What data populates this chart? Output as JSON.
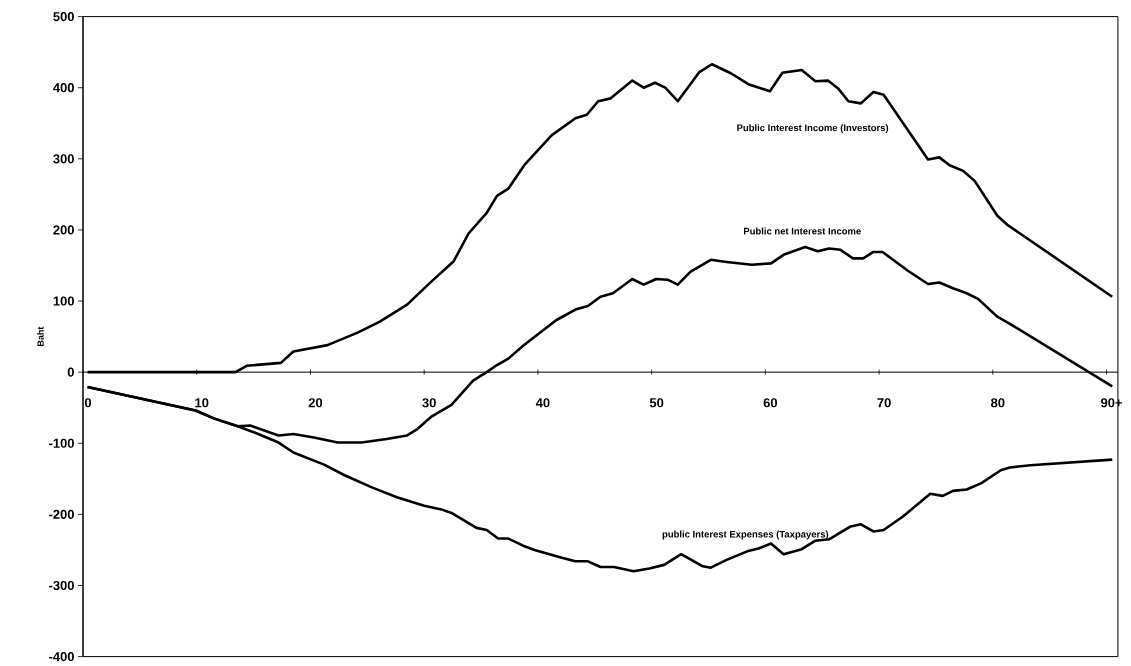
{
  "chart_data": {
    "type": "line",
    "ylabel": "Baht",
    "xlim": [
      0,
      91
    ],
    "ylim": [
      -400,
      500
    ],
    "xticks": [
      0,
      10,
      20,
      30,
      40,
      50,
      60,
      70,
      80,
      {
        "value": 90,
        "label": "90+"
      }
    ],
    "yticks": [
      -400,
      -300,
      -200,
      -100,
      0,
      100,
      200,
      300,
      400,
      500
    ],
    "series": [
      {
        "name": "Public Interest Income (Investors)",
        "color": "#000000",
        "x": [
          0.4,
          13.4,
          14.4,
          17.4,
          18.5,
          21.5,
          24.2,
          26.1,
          28.5,
          30.6,
          32.6,
          33.9,
          35.5,
          36.4,
          37.4,
          38.8,
          41.2,
          43.3,
          44.3,
          45.3,
          46.4,
          48.3,
          49.3,
          50.3,
          51.2,
          52.3,
          54.2,
          55.3,
          57,
          58.5,
          60.4,
          61.5,
          63.2,
          64.4,
          65.5,
          66.4,
          67.3,
          68.4,
          69.5,
          70.4,
          74.3,
          75.3,
          76.2,
          77.4,
          78.4,
          79.3,
          80.4,
          81.3,
          90.5
        ],
        "values": [
          0,
          0,
          9,
          13,
          29,
          38,
          56,
          71,
          95,
          127,
          156,
          195,
          224,
          248,
          258,
          291,
          333,
          357,
          362,
          381,
          385,
          410,
          400,
          407,
          400,
          381,
          422,
          433,
          420,
          405,
          395,
          421,
          425,
          409,
          410,
          399,
          381,
          378,
          394,
          390,
          299,
          302,
          291,
          283,
          269,
          247,
          220,
          207,
          106
        ]
      },
      {
        "name": "Public net Interest Income",
        "color": "#000000",
        "x": [
          0.4,
          9.9,
          11.5,
          13.6,
          14.7,
          17.2,
          18.5,
          20.3,
          22.4,
          24.5,
          26.7,
          28.5,
          29.4,
          30.6,
          32.4,
          34.3,
          35.5,
          36.4,
          37.4,
          38.7,
          41.6,
          43.3,
          44.4,
          45.5,
          46.6,
          48.3,
          49.3,
          50.4,
          51.4,
          52.3,
          53.4,
          55.2,
          56.6,
          58.8,
          60.5,
          61.6,
          63.5,
          64.6,
          65.6,
          66.6,
          67.7,
          68.6,
          69.5,
          70.3,
          72.5,
          74.3,
          75.3,
          76.5,
          77.7,
          78.7,
          80.4,
          81.5,
          90.5
        ],
        "values": [
          -21,
          -54,
          -65,
          -76,
          -75,
          -89,
          -87,
          -92,
          -99,
          -99,
          -94,
          -89,
          -80,
          -63,
          -46,
          -12,
          0,
          10,
          19,
          37,
          73,
          88,
          93,
          106,
          111,
          131,
          123,
          131,
          130,
          123,
          141,
          158,
          155,
          151,
          153,
          165,
          176,
          170,
          174,
          172,
          160,
          160,
          169,
          169,
          143,
          124,
          126,
          118,
          111,
          103,
          78,
          68,
          -20
        ]
      },
      {
        "name": "public Interest Expenses (Taxpayers)",
        "color": "#000000",
        "x": [
          0.4,
          9.9,
          11.5,
          13.6,
          15.4,
          17.2,
          18.5,
          21.2,
          23,
          25.4,
          27.6,
          30,
          31.5,
          32.4,
          34.6,
          35.5,
          36.5,
          37.4,
          38.7,
          39.7,
          42.1,
          43.3,
          44.4,
          45.5,
          46.7,
          48.4,
          49.8,
          51.1,
          52.6,
          54.5,
          55.2,
          56.6,
          58.4,
          59.4,
          60.5,
          61.6,
          63.2,
          64.4,
          65.6,
          67.5,
          68.4,
          69.5,
          70.4,
          72.1,
          74.5,
          75.6,
          76.5,
          77.7,
          79,
          80.7,
          81.5,
          83.3,
          90.5
        ],
        "values": [
          -21,
          -54,
          -65,
          -76,
          -87,
          -99,
          -113,
          -130,
          -145,
          -162,
          -176,
          -188,
          -193,
          -198,
          -219,
          -222,
          -234,
          -234,
          -244,
          -250,
          -261,
          -266,
          -266,
          -274,
          -274,
          -280,
          -276,
          -271,
          -256,
          -273,
          -275,
          -264,
          -252,
          -248,
          -241,
          -256,
          -249,
          -237,
          -235,
          -217,
          -214,
          -224,
          -222,
          -203,
          -171,
          -174,
          -167,
          -165,
          -156,
          -138,
          -134,
          -131,
          -123
        ]
      }
    ]
  }
}
